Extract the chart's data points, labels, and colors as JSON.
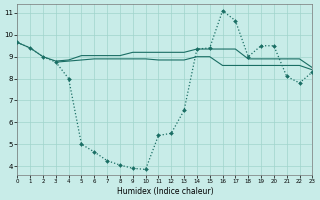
{
  "xlabel": "Humidex (Indice chaleur)",
  "background_color": "#c8ece8",
  "grid_color": "#a0d4cc",
  "line_color": "#1a6e64",
  "xlim": [
    0,
    23
  ],
  "ylim": [
    3.6,
    11.4
  ],
  "xticks": [
    0,
    1,
    2,
    3,
    4,
    5,
    6,
    7,
    8,
    9,
    10,
    11,
    12,
    13,
    14,
    15,
    16,
    17,
    18,
    19,
    20,
    21,
    22,
    23
  ],
  "yticks": [
    4,
    5,
    6,
    7,
    8,
    9,
    10,
    11
  ],
  "line1_x": [
    0,
    1,
    2,
    3,
    4,
    5,
    6,
    7,
    8,
    9,
    10,
    11,
    12,
    13,
    14,
    15,
    16,
    17,
    18,
    19,
    20,
    21,
    22,
    23
  ],
  "line1_y": [
    9.65,
    9.4,
    9.0,
    8.75,
    8.0,
    5.0,
    4.65,
    4.25,
    4.05,
    3.9,
    3.85,
    5.4,
    5.5,
    6.55,
    9.35,
    9.4,
    11.1,
    10.65,
    9.0,
    9.5,
    9.5,
    8.1,
    7.8,
    8.3
  ],
  "line2_x": [
    0,
    1,
    2,
    3,
    4,
    5,
    6,
    7,
    8,
    9,
    10,
    11,
    12,
    13,
    14,
    15,
    16,
    17,
    18,
    19,
    20,
    21,
    22,
    23
  ],
  "line2_y": [
    9.65,
    9.4,
    9.0,
    8.8,
    8.85,
    9.05,
    9.05,
    9.05,
    9.05,
    9.2,
    9.2,
    9.2,
    9.2,
    9.2,
    9.35,
    9.35,
    9.35,
    9.35,
    8.9,
    8.9,
    8.9,
    8.9,
    8.9,
    8.5
  ],
  "line3_x": [
    3,
    4,
    5,
    6,
    7,
    8,
    9,
    10,
    11,
    12,
    13,
    14,
    15,
    16,
    17,
    18,
    19,
    20,
    21,
    22,
    23
  ],
  "line3_y": [
    8.75,
    8.8,
    8.85,
    8.9,
    8.9,
    8.9,
    8.9,
    8.9,
    8.85,
    8.85,
    8.85,
    9.0,
    9.0,
    8.6,
    8.6,
    8.6,
    8.6,
    8.6,
    8.6,
    8.6,
    8.4
  ]
}
